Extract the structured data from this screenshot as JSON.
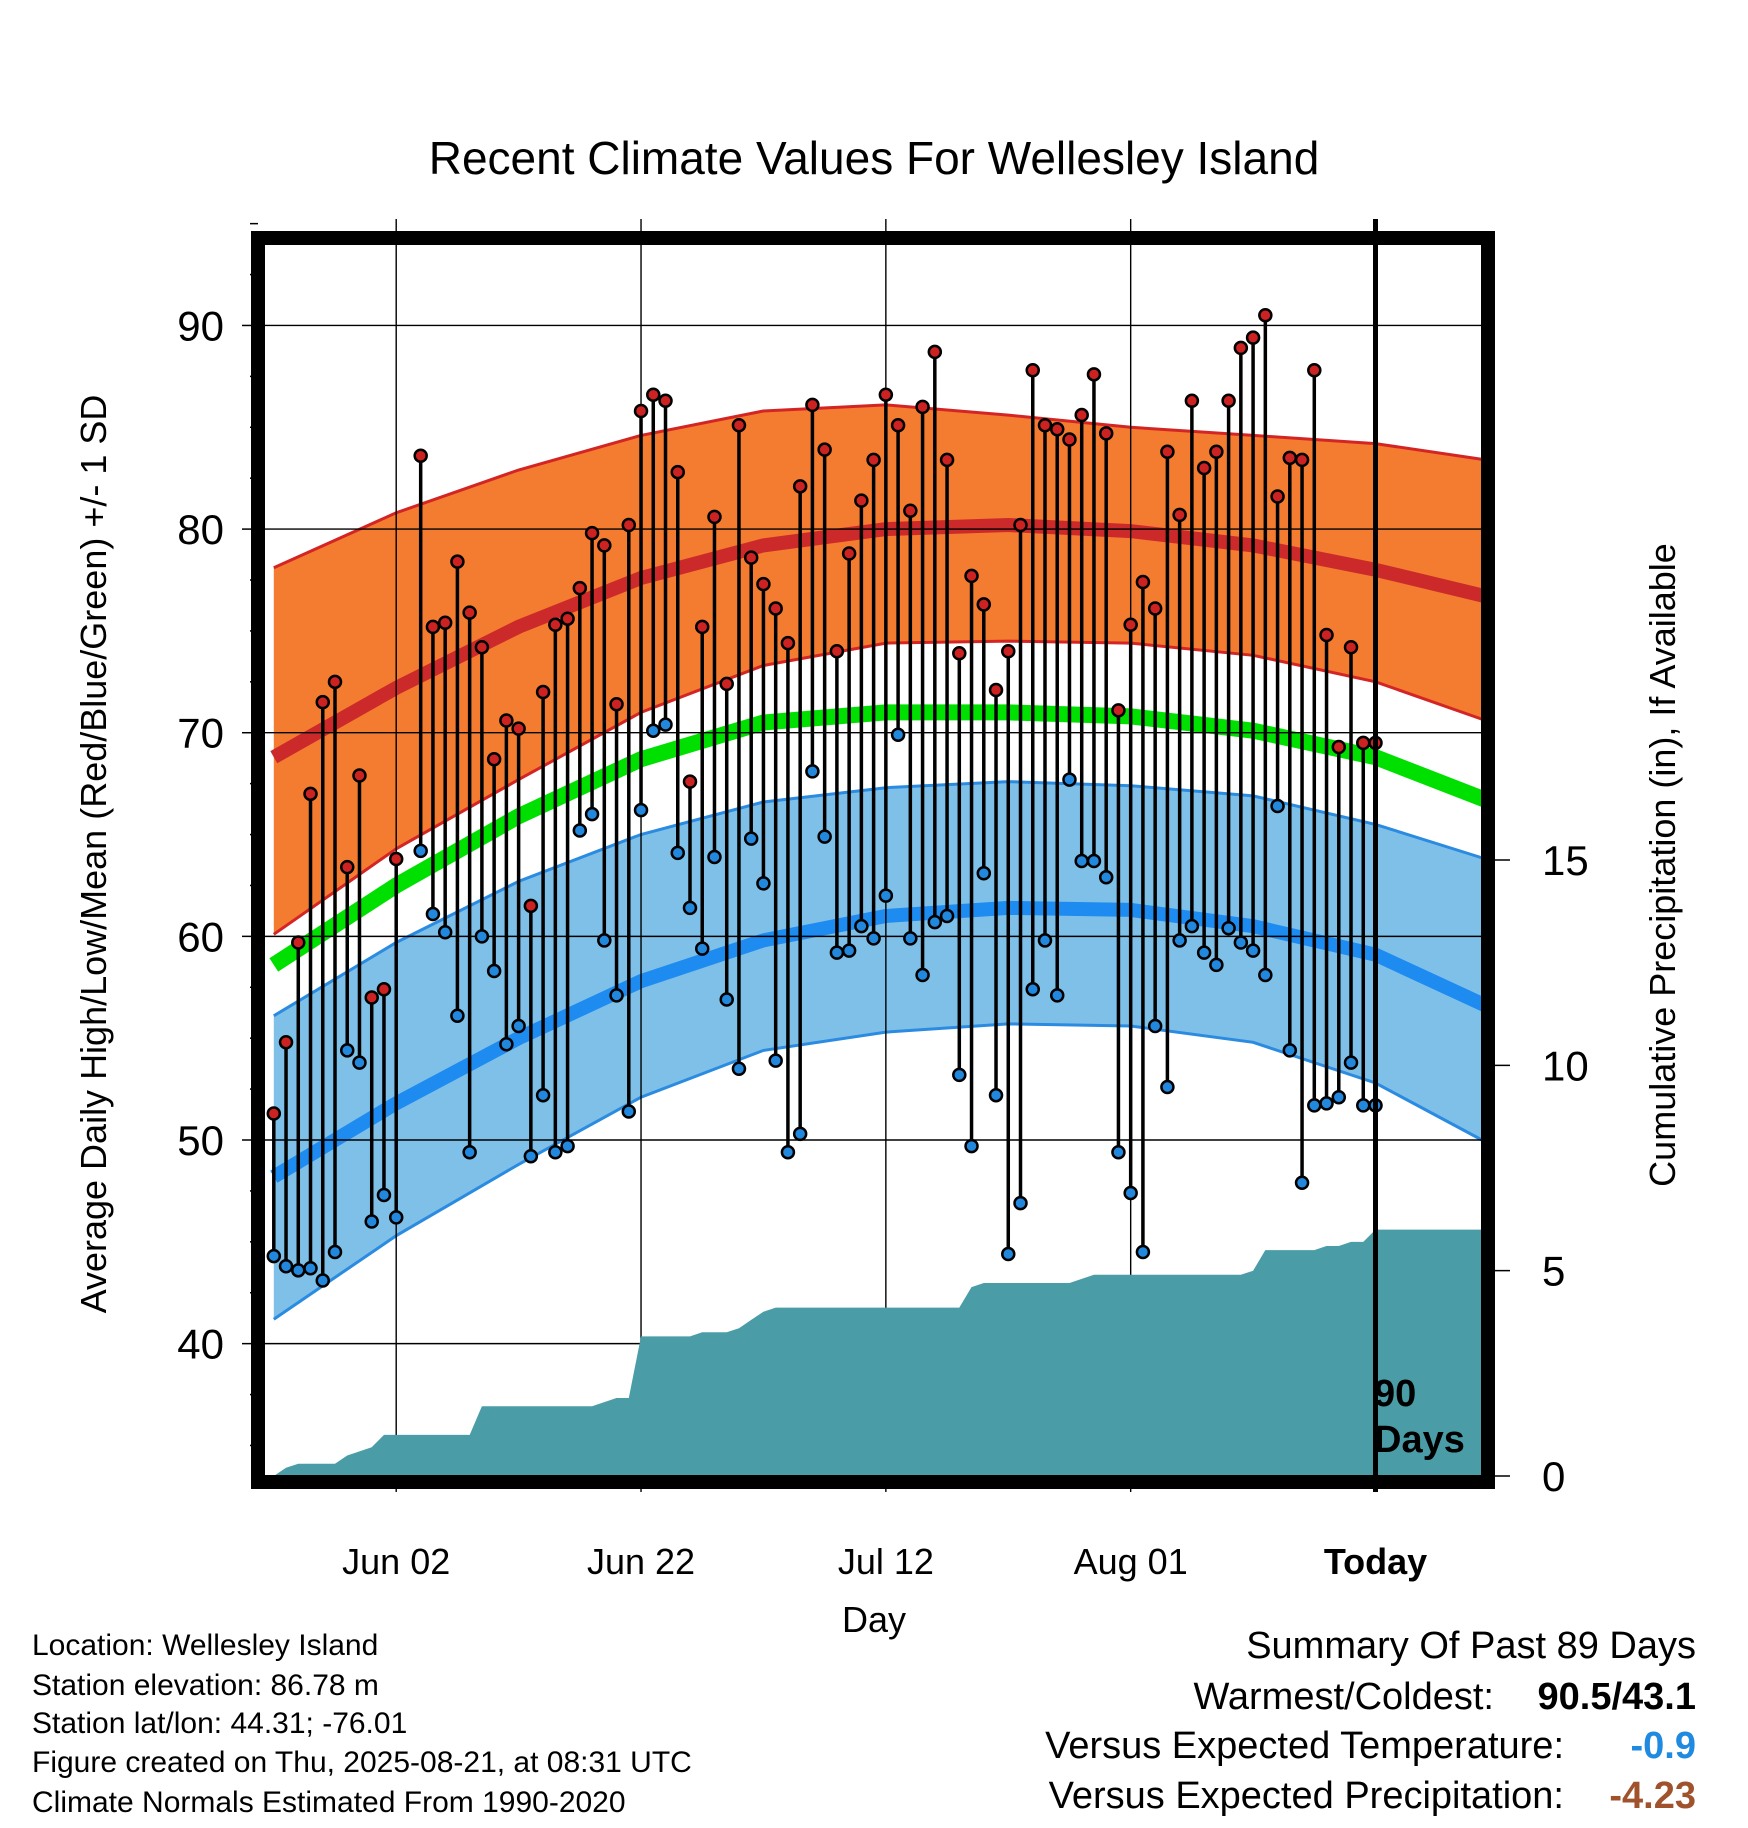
{
  "chart_data": {
    "type": "line",
    "title": "Recent Climate Values For Wellesley Island",
    "xlabel": "Day",
    "ylabel": "Average Daily High/Low/Mean (Red/Blue/Green) +/- 1 SD",
    "y2label": "Cumulative Precipitation (in), If Available",
    "ylim": [
      33.5,
      94
    ],
    "y2lim": [
      0,
      30
    ],
    "y_ticks": [
      "40",
      "50",
      "60",
      "70",
      "80",
      "90"
    ],
    "y2_ticks": [
      "0",
      "5",
      "10",
      "15"
    ],
    "x_tick_labels": [
      "Jun 02",
      "Jun 22",
      "Jul 12",
      "Aug 01",
      "Today"
    ],
    "x_tick_days": [
      10,
      30,
      50,
      70,
      90
    ],
    "xlim": [
      -0.8,
      98.7
    ],
    "days_annotation": "90\nDays",
    "normals": {
      "x": [
        0,
        10,
        20,
        30,
        40,
        50,
        60,
        70,
        80,
        90,
        99
      ],
      "high_mean": [
        68.8,
        72.2,
        75.2,
        77.6,
        79.2,
        80.0,
        80.2,
        79.9,
        79.2,
        78.0,
        76.7
      ],
      "high_upper": [
        78.1,
        80.8,
        82.9,
        84.6,
        85.8,
        86.1,
        85.6,
        85.0,
        84.6,
        84.2,
        83.4
      ],
      "high_lower": [
        60.1,
        64.3,
        67.7,
        71.0,
        73.3,
        74.4,
        74.5,
        74.4,
        73.8,
        72.5,
        70.6
      ],
      "mean": [
        58.6,
        62.5,
        65.9,
        68.7,
        70.5,
        71.0,
        71.0,
        70.8,
        70.1,
        68.8,
        66.7
      ],
      "low_mean": [
        48.2,
        51.8,
        55.0,
        57.8,
        59.8,
        61.0,
        61.4,
        61.3,
        60.5,
        59.1,
        56.6
      ],
      "low_upper": [
        56.1,
        59.7,
        62.7,
        65.0,
        66.6,
        67.3,
        67.6,
        67.4,
        66.9,
        65.5,
        63.8
      ],
      "low_lower": [
        41.2,
        45.3,
        48.8,
        52.1,
        54.4,
        55.3,
        55.7,
        55.6,
        54.8,
        52.8,
        49.9
      ]
    },
    "series": [
      {
        "name": "High",
        "color": "#cc2222",
        "x": [
          0,
          1,
          2,
          3,
          4,
          5,
          6,
          7,
          8,
          9,
          10,
          12,
          13,
          14,
          15,
          16,
          17,
          18,
          19,
          20,
          21,
          22,
          23,
          24,
          25,
          26,
          27,
          28,
          29,
          30,
          31,
          32,
          33,
          34,
          35,
          36,
          37,
          38,
          39,
          40,
          41,
          42,
          43,
          44,
          45,
          46,
          47,
          48,
          49,
          50,
          51,
          52,
          53,
          54,
          55,
          56,
          57,
          58,
          59,
          60,
          61,
          62,
          63,
          64,
          65,
          66,
          67,
          68,
          69,
          70,
          71,
          72,
          73,
          74,
          75,
          76,
          77,
          78,
          79,
          80,
          81,
          82,
          83,
          84,
          85,
          86,
          87,
          88,
          89,
          90
        ],
        "values": [
          51.3,
          54.8,
          59.7,
          67.0,
          71.5,
          72.5,
          63.4,
          67.9,
          57.0,
          57.4,
          63.8,
          83.6,
          75.2,
          75.4,
          78.4,
          75.9,
          74.2,
          68.7,
          70.6,
          70.2,
          61.5,
          72.0,
          75.3,
          75.6,
          77.1,
          79.8,
          79.2,
          71.4,
          80.2,
          85.8,
          86.6,
          86.3,
          82.8,
          67.6,
          75.2,
          80.6,
          72.4,
          85.1,
          78.6,
          77.3,
          76.1,
          74.4,
          82.1,
          86.1,
          83.9,
          74.0,
          78.8,
          81.4,
          83.4,
          86.6,
          85.1,
          80.9,
          86.0,
          88.7,
          83.4,
          73.9,
          77.7,
          76.3,
          72.1,
          74.0,
          80.2,
          87.8,
          85.1,
          84.9,
          84.4,
          85.6,
          87.6,
          84.7,
          71.1,
          75.3,
          77.4,
          76.1,
          83.8,
          80.7,
          86.3,
          83.0,
          83.8,
          86.3,
          88.9,
          89.4,
          90.5,
          81.6,
          83.5,
          83.4,
          87.8,
          74.8,
          69.3,
          74.2,
          69.5,
          69.5
        ]
      },
      {
        "name": "Low",
        "color": "#2288dd",
        "x": [
          0,
          1,
          2,
          3,
          4,
          5,
          6,
          7,
          8,
          9,
          10,
          12,
          13,
          14,
          15,
          16,
          17,
          18,
          19,
          20,
          21,
          22,
          23,
          24,
          25,
          26,
          27,
          28,
          29,
          30,
          31,
          32,
          33,
          34,
          35,
          36,
          37,
          38,
          39,
          40,
          41,
          42,
          43,
          44,
          45,
          46,
          47,
          48,
          49,
          50,
          51,
          52,
          53,
          54,
          55,
          56,
          57,
          58,
          59,
          60,
          61,
          62,
          63,
          64,
          65,
          66,
          67,
          68,
          69,
          70,
          71,
          72,
          73,
          74,
          75,
          76,
          77,
          78,
          79,
          80,
          81,
          82,
          83,
          84,
          85,
          86,
          87,
          88,
          89,
          90
        ],
        "values": [
          44.3,
          43.8,
          43.6,
          43.7,
          43.1,
          44.5,
          54.4,
          53.8,
          46.0,
          47.3,
          46.2,
          64.2,
          61.1,
          60.2,
          56.1,
          49.4,
          60.0,
          58.3,
          54.7,
          55.6,
          49.2,
          52.2,
          49.4,
          49.7,
          65.2,
          66.0,
          59.8,
          57.1,
          51.4,
          66.2,
          70.1,
          70.4,
          64.1,
          61.4,
          59.4,
          63.9,
          56.9,
          53.5,
          64.8,
          62.6,
          53.9,
          49.4,
          50.3,
          68.1,
          64.9,
          59.2,
          59.3,
          60.5,
          59.9,
          62.0,
          69.9,
          59.9,
          58.1,
          60.7,
          61.0,
          53.2,
          49.7,
          63.1,
          52.2,
          44.4,
          46.9,
          57.4,
          59.8,
          57.1,
          67.7,
          63.7,
          63.7,
          62.9,
          49.4,
          47.4,
          44.5,
          55.6,
          52.6,
          59.8,
          60.5,
          59.2,
          58.6,
          60.4,
          59.7,
          59.3,
          58.1,
          66.4,
          54.4,
          47.9,
          51.7,
          51.8,
          52.1,
          53.8,
          51.7,
          51.7
        ]
      }
    ],
    "precip": {
      "name": "Cumulative Precipitation",
      "color": "#4a9da6",
      "x": [
        0,
        1,
        2,
        3,
        4,
        5,
        6,
        7,
        8,
        9,
        10,
        11,
        12,
        13,
        14,
        15,
        16,
        17,
        18,
        19,
        20,
        21,
        22,
        23,
        24,
        25,
        26,
        27,
        28,
        29,
        30,
        31,
        32,
        33,
        34,
        35,
        36,
        37,
        38,
        39,
        40,
        41,
        42,
        43,
        44,
        45,
        46,
        47,
        48,
        49,
        50,
        51,
        52,
        53,
        54,
        55,
        56,
        57,
        58,
        59,
        60,
        61,
        62,
        63,
        64,
        65,
        66,
        67,
        68,
        69,
        70,
        71,
        72,
        73,
        74,
        75,
        76,
        77,
        78,
        79,
        80,
        81,
        82,
        83,
        84,
        85,
        86,
        87,
        88,
        89,
        90,
        91,
        92,
        93,
        94,
        95,
        96,
        97,
        98,
        99
      ],
      "values": [
        0.0,
        0.2,
        0.3,
        0.3,
        0.3,
        0.3,
        0.5,
        0.6,
        0.7,
        1.0,
        1.0,
        1.0,
        1.0,
        1.0,
        1.0,
        1.0,
        1.0,
        1.7,
        1.7,
        1.7,
        1.7,
        1.7,
        1.7,
        1.7,
        1.7,
        1.7,
        1.7,
        1.8,
        1.9,
        1.9,
        3.4,
        3.4,
        3.4,
        3.4,
        3.4,
        3.5,
        3.5,
        3.5,
        3.6,
        3.8,
        4.0,
        4.1,
        4.1,
        4.1,
        4.1,
        4.1,
        4.1,
        4.1,
        4.1,
        4.1,
        4.1,
        4.1,
        4.1,
        4.1,
        4.1,
        4.1,
        4.1,
        4.6,
        4.7,
        4.7,
        4.7,
        4.7,
        4.7,
        4.7,
        4.7,
        4.7,
        4.8,
        4.9,
        4.9,
        4.9,
        4.9,
        4.9,
        4.9,
        4.9,
        4.9,
        4.9,
        4.9,
        4.9,
        4.9,
        4.9,
        5.0,
        5.5,
        5.5,
        5.5,
        5.5,
        5.5,
        5.6,
        5.6,
        5.7,
        5.7,
        6.0,
        6.0,
        6.0,
        6.0,
        6.0,
        6.0,
        6.0,
        6.0,
        6.0,
        6.0
      ]
    }
  },
  "footer": {
    "location": "Location: Wellesley Island",
    "elevation": "Station elevation: 86.78 m",
    "latlon": "Station lat/lon: 44.31; -76.01",
    "created": "Figure created on Thu, 2025-08-21, at 08:31 UTC",
    "normals": "Climate Normals Estimated From 1990-2020"
  },
  "summary": {
    "title": "Summary Of Past 89 Days",
    "warmest_label": "Warmest/Coldest:",
    "warmest_value": "90.5/43.1",
    "temp_label": "Versus Expected Temperature:",
    "temp_value": "-0.9",
    "temp_color": "#1f8ae0",
    "precip_label": "Versus Expected Precipitation:",
    "precip_value": "-4.23",
    "precip_color": "#a0522d"
  }
}
